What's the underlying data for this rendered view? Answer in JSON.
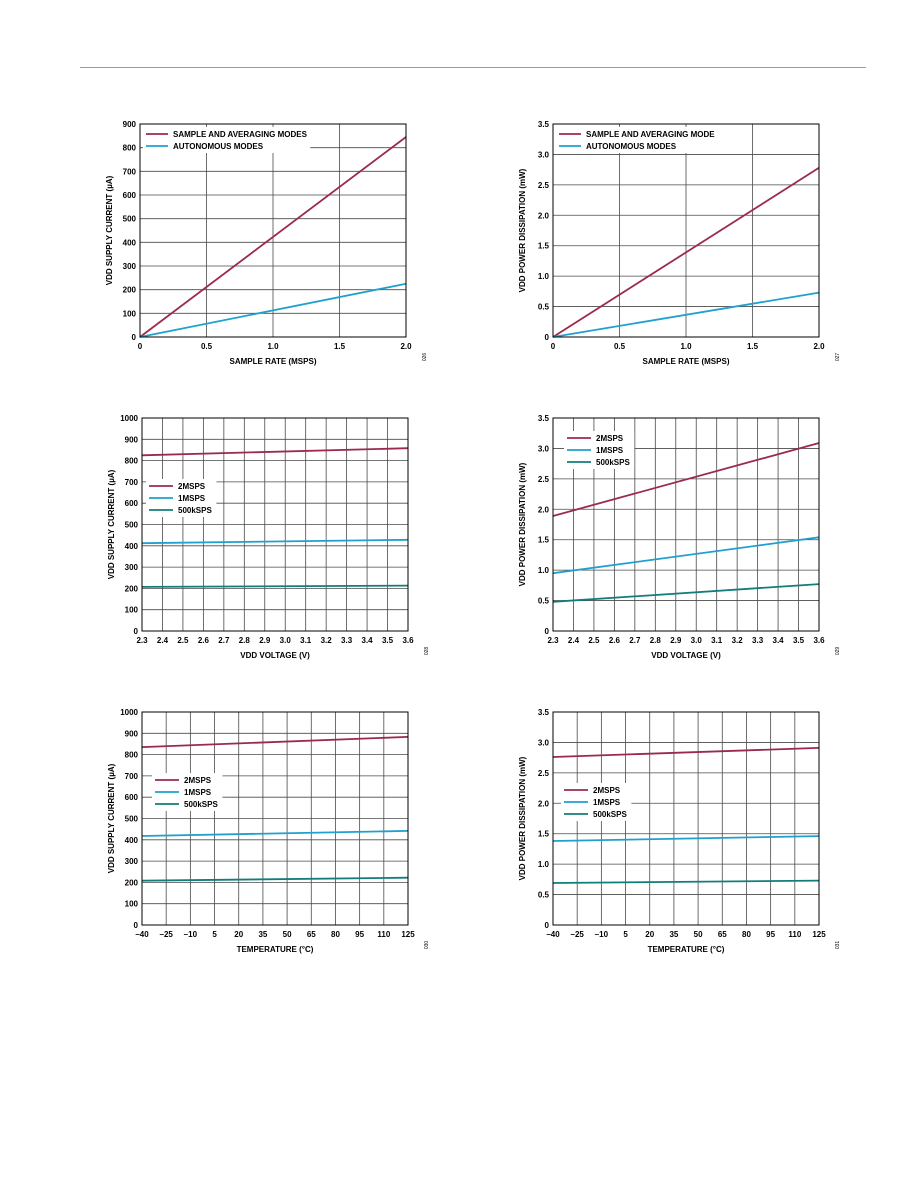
{
  "colors": {
    "primary": "#9b2a4e",
    "secondary": "#1fa0cf",
    "tertiary": "#127d7a",
    "grid": "#4a4a4a"
  },
  "chart_data": [
    {
      "type": "line",
      "xlabel": "SAMPLE RATE (MSPS)",
      "ylabel": "VDD SUPPLY CURRENT (µA)",
      "xlim": [
        0,
        2.0
      ],
      "ylim": [
        0,
        900
      ],
      "xticks": [
        0,
        0.5,
        1.0,
        1.5,
        2.0
      ],
      "xtick_labels": [
        "0",
        "0.5",
        "1.0",
        "1.5",
        "2.0"
      ],
      "yticks": [
        0,
        100,
        200,
        300,
        400,
        500,
        600,
        700,
        800,
        900
      ],
      "ytick_labels": [
        "0",
        "100",
        "200",
        "300",
        "400",
        "500",
        "600",
        "700",
        "800",
        "900"
      ],
      "grid": true,
      "legend": "top-left",
      "fig_id": "026",
      "series": [
        {
          "name": "SAMPLE AND AVERAGING MODES",
          "color": "#9b2a4e",
          "x": [
            0,
            2.0
          ],
          "y": [
            0,
            845
          ]
        },
        {
          "name": "AUTONOMOUS MODES",
          "color": "#1fa0cf",
          "x": [
            0,
            2.0
          ],
          "y": [
            0,
            225
          ]
        }
      ]
    },
    {
      "type": "line",
      "xlabel": "SAMPLE RATE (MSPS)",
      "ylabel": "VDD POWER DISSIPATION (mW)",
      "xlim": [
        0,
        2.0
      ],
      "ylim": [
        0,
        3.5
      ],
      "xticks": [
        0,
        0.5,
        1.0,
        1.5,
        2.0
      ],
      "xtick_labels": [
        "0",
        "0.5",
        "1.0",
        "1.5",
        "2.0"
      ],
      "yticks": [
        0,
        0.5,
        1.0,
        1.5,
        2.0,
        2.5,
        3.0,
        3.5
      ],
      "ytick_labels": [
        "0",
        "0.5",
        "1.0",
        "1.5",
        "2.0",
        "2.5",
        "3.0",
        "3.5"
      ],
      "grid": true,
      "legend": "top-left",
      "fig_id": "027",
      "series": [
        {
          "name": "SAMPLE AND AVERAGING MODE",
          "color": "#9b2a4e",
          "x": [
            0,
            2.0
          ],
          "y": [
            0,
            2.78
          ]
        },
        {
          "name": "AUTONOMOUS MODES",
          "color": "#1fa0cf",
          "x": [
            0,
            2.0
          ],
          "y": [
            0,
            0.73
          ]
        }
      ]
    },
    {
      "type": "line",
      "xlabel": "VDD VOLTAGE (V)",
      "ylabel": "VDD SUPPLY CURRENT (µA)",
      "xlim": [
        2.3,
        3.6
      ],
      "ylim": [
        0,
        1000
      ],
      "xticks": [
        2.3,
        2.4,
        2.5,
        2.6,
        2.7,
        2.8,
        2.9,
        3.0,
        3.1,
        3.2,
        3.3,
        3.4,
        3.5,
        3.6
      ],
      "xtick_labels": [
        "2.3",
        "2.4",
        "2.5",
        "2.6",
        "2.7",
        "2.8",
        "2.9",
        "3.0",
        "3.1",
        "3.2",
        "3.3",
        "3.4",
        "3.5",
        "3.6"
      ],
      "yticks": [
        0,
        100,
        200,
        300,
        400,
        500,
        600,
        700,
        800,
        900,
        1000
      ],
      "ytick_labels": [
        "0",
        "100",
        "200",
        "300",
        "400",
        "500",
        "600",
        "700",
        "800",
        "900",
        "1000"
      ],
      "grid": true,
      "legend": "middle-left",
      "fig_id": "028",
      "series": [
        {
          "name": "2MSPS",
          "color": "#9b2a4e",
          "x": [
            2.3,
            3.6
          ],
          "y": [
            825,
            858
          ]
        },
        {
          "name": "1MSPS",
          "color": "#1fa0cf",
          "x": [
            2.3,
            3.6
          ],
          "y": [
            412,
            428
          ]
        },
        {
          "name": "500kSPS",
          "color": "#127d7a",
          "x": [
            2.3,
            3.6
          ],
          "y": [
            207,
            213
          ]
        }
      ]
    },
    {
      "type": "line",
      "xlabel": "VDD VOLTAGE (V)",
      "ylabel": "VDD POWER DISSIPATION (mW)",
      "xlim": [
        2.3,
        3.6
      ],
      "ylim": [
        0,
        3.5
      ],
      "xticks": [
        2.3,
        2.4,
        2.5,
        2.6,
        2.7,
        2.8,
        2.9,
        3.0,
        3.1,
        3.2,
        3.3,
        3.4,
        3.5,
        3.6
      ],
      "xtick_labels": [
        "2.3",
        "2.4",
        "2.5",
        "2.6",
        "2.7",
        "2.8",
        "2.9",
        "3.0",
        "3.1",
        "3.2",
        "3.3",
        "3.4",
        "3.5",
        "3.6"
      ],
      "yticks": [
        0,
        0.5,
        1.0,
        1.5,
        2.0,
        2.5,
        3.0,
        3.5
      ],
      "ytick_labels": [
        "0",
        "0.5",
        "1.0",
        "1.5",
        "2.0",
        "2.5",
        "3.0",
        "3.5"
      ],
      "grid": true,
      "legend": "top-left",
      "fig_id": "029",
      "series": [
        {
          "name": "2MSPS",
          "color": "#9b2a4e",
          "x": [
            2.3,
            3.6
          ],
          "y": [
            1.89,
            3.09
          ]
        },
        {
          "name": "1MSPS",
          "color": "#1fa0cf",
          "x": [
            2.3,
            3.6
          ],
          "y": [
            0.95,
            1.54
          ]
        },
        {
          "name": "500kSPS",
          "color": "#127d7a",
          "x": [
            2.3,
            3.6
          ],
          "y": [
            0.48,
            0.77
          ]
        }
      ]
    },
    {
      "type": "line",
      "xlabel": "TEMPERATURE (°C)",
      "ylabel": "VDD SUPPLY CURRENT (µA)",
      "xlim": [
        -40,
        125
      ],
      "ylim": [
        0,
        1000
      ],
      "xticks": [
        -40,
        -25,
        -10,
        5,
        20,
        35,
        50,
        65,
        80,
        95,
        110,
        125
      ],
      "xtick_labels": [
        "–40",
        "–25",
        "–10",
        "5",
        "20",
        "35",
        "50",
        "65",
        "80",
        "95",
        "110",
        "125"
      ],
      "yticks": [
        0,
        100,
        200,
        300,
        400,
        500,
        600,
        700,
        800,
        900,
        1000
      ],
      "ytick_labels": [
        "0",
        "100",
        "200",
        "300",
        "400",
        "500",
        "600",
        "700",
        "800",
        "900",
        "1000"
      ],
      "grid": true,
      "legend": "middle-left",
      "fig_id": "030",
      "series": [
        {
          "name": "2MSPS",
          "color": "#9b2a4e",
          "x": [
            -40,
            125
          ],
          "y": [
            835,
            883
          ]
        },
        {
          "name": "1MSPS",
          "color": "#1fa0cf",
          "x": [
            -40,
            125
          ],
          "y": [
            418,
            442
          ]
        },
        {
          "name": "500kSPS",
          "color": "#127d7a",
          "x": [
            -40,
            125
          ],
          "y": [
            208,
            222
          ]
        }
      ]
    },
    {
      "type": "line",
      "xlabel": "TEMPERATURE (°C)",
      "ylabel": "VDD POWER DISSIPATION (mW)",
      "xlim": [
        -40,
        125
      ],
      "ylim": [
        0,
        3.5
      ],
      "xticks": [
        -40,
        -25,
        -10,
        5,
        20,
        35,
        50,
        65,
        80,
        95,
        110,
        125
      ],
      "xtick_labels": [
        "–40",
        "–25",
        "–10",
        "5",
        "20",
        "35",
        "50",
        "65",
        "80",
        "95",
        "110",
        "125"
      ],
      "yticks": [
        0,
        0.5,
        1.0,
        1.5,
        2.0,
        2.5,
        3.0,
        3.5
      ],
      "ytick_labels": [
        "0",
        "0.5",
        "1.0",
        "1.5",
        "2.0",
        "2.5",
        "3.0",
        "3.5"
      ],
      "grid": true,
      "legend": "middle-left",
      "fig_id": "031",
      "series": [
        {
          "name": "2MSPS",
          "color": "#9b2a4e",
          "x": [
            -40,
            125
          ],
          "y": [
            2.76,
            2.91
          ]
        },
        {
          "name": "1MSPS",
          "color": "#1fa0cf",
          "x": [
            -40,
            125
          ],
          "y": [
            1.38,
            1.46
          ]
        },
        {
          "name": "500kSPS",
          "color": "#127d7a",
          "x": [
            -40,
            125
          ],
          "y": [
            0.69,
            0.73
          ]
        }
      ]
    }
  ]
}
